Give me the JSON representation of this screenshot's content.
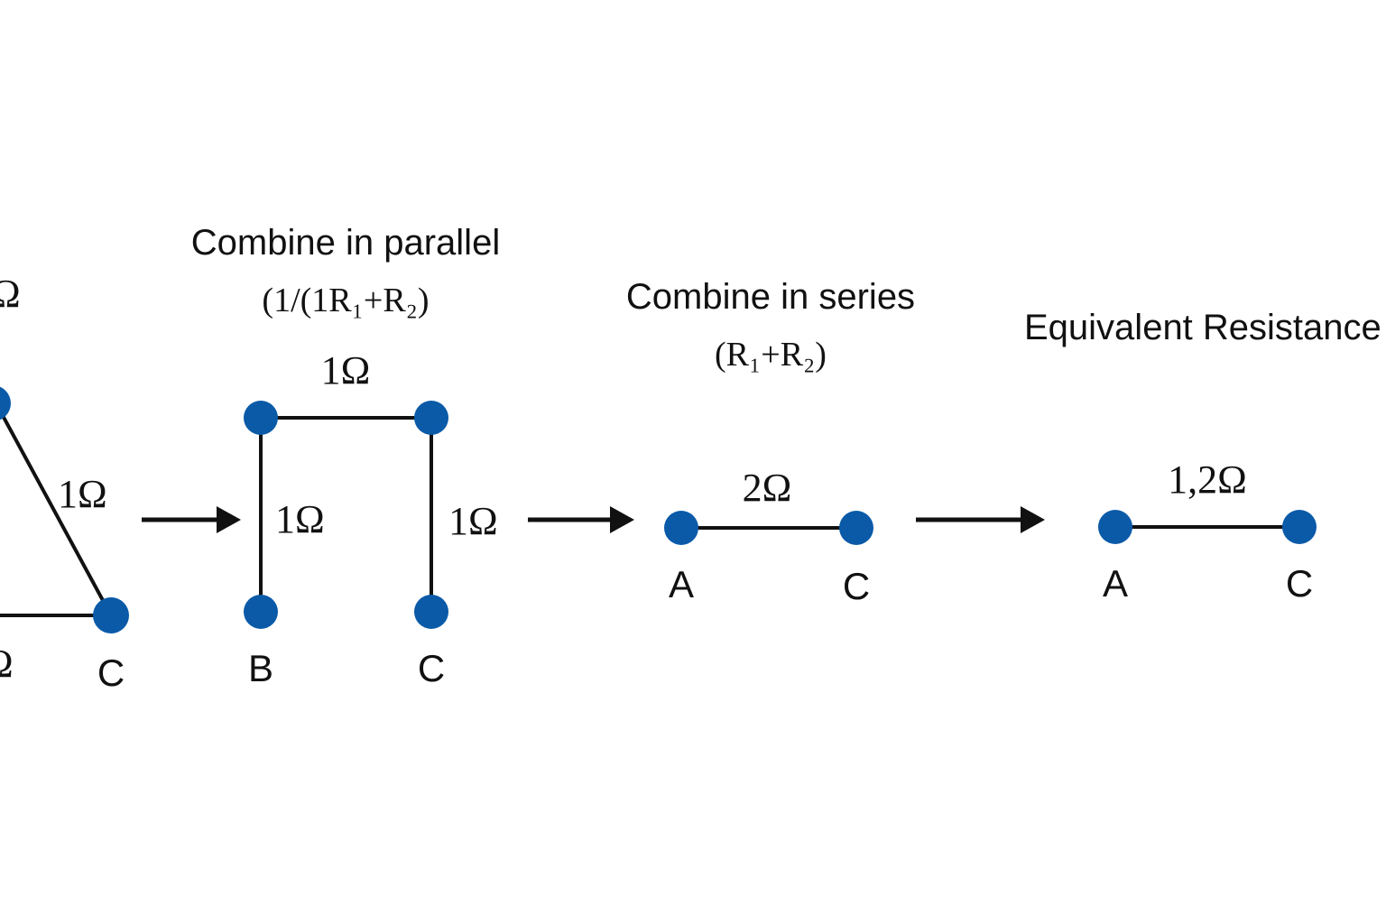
{
  "colors": {
    "node": "#0a5aa8",
    "wire": "#111111",
    "background": "#ffffff"
  },
  "stage1": {
    "res_top_partial": "Ω",
    "res_diagonal": "1Ω",
    "res_bottom_partial": "Ω",
    "label_c": "C"
  },
  "stage2": {
    "heading": "Combine in parallel",
    "formula": "(1/(1R₁+R₂)",
    "res_top": "1Ω",
    "res_left": "1Ω",
    "res_right": "1Ω",
    "label_b": "B",
    "label_c": "C"
  },
  "stage3": {
    "heading": "Combine in series",
    "formula": "(R₁+R₂)",
    "res": "2Ω",
    "label_a": "A",
    "label_c": "C"
  },
  "stage4": {
    "heading": "Equivalent Resistance",
    "res": "1,2Ω",
    "label_a": "A",
    "label_c": "C"
  }
}
